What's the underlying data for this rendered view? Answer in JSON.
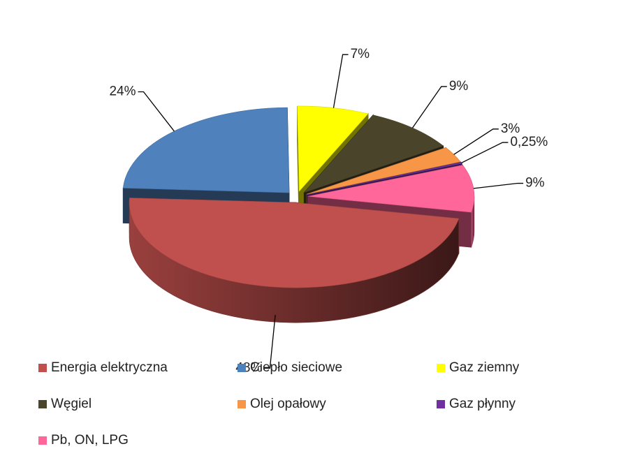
{
  "chart_data": {
    "type": "pie3d",
    "categories": [
      "Energia elektryczna",
      "Ciepło sieciowe",
      "Gaz ziemny",
      "Węgiel",
      "Olej opałowy",
      "Gaz płynny",
      "Pb, ON, LPG"
    ],
    "values": [
      48,
      24,
      7,
      9,
      3,
      0.25,
      9
    ],
    "value_labels": [
      "48%",
      "24%",
      "7%",
      "9%",
      "3%",
      "0,25%",
      "9%"
    ],
    "colors": [
      "#c0504d",
      "#4f81bd",
      "#ffff00",
      "#4a452a",
      "#f79646",
      "#7030a0",
      "#ff6699"
    ],
    "legend": "bottom"
  }
}
